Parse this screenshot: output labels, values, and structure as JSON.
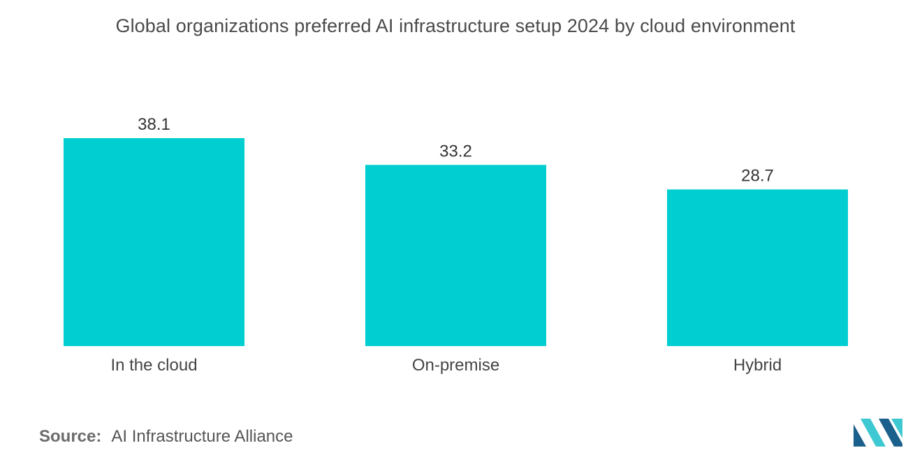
{
  "source": {
    "label": "Source:",
    "text": "AI Infrastructure Alliance"
  },
  "colors": {
    "bar": "#00CED1",
    "logo_dark": "#1b5f8c",
    "logo_light": "#3ec8d2"
  },
  "chart_data": {
    "type": "bar",
    "title": "Global organizations preferred AI infrastructure setup 2024 by cloud environment",
    "xlabel": "",
    "ylabel": "",
    "categories": [
      "In the cloud",
      "On-premise",
      "Hybrid"
    ],
    "values": [
      38.1,
      33.2,
      28.7
    ],
    "value_labels": [
      "38.1",
      "33.2",
      "28.7"
    ],
    "ylim": [
      0,
      38.1
    ],
    "grid": false,
    "legend": "none"
  }
}
